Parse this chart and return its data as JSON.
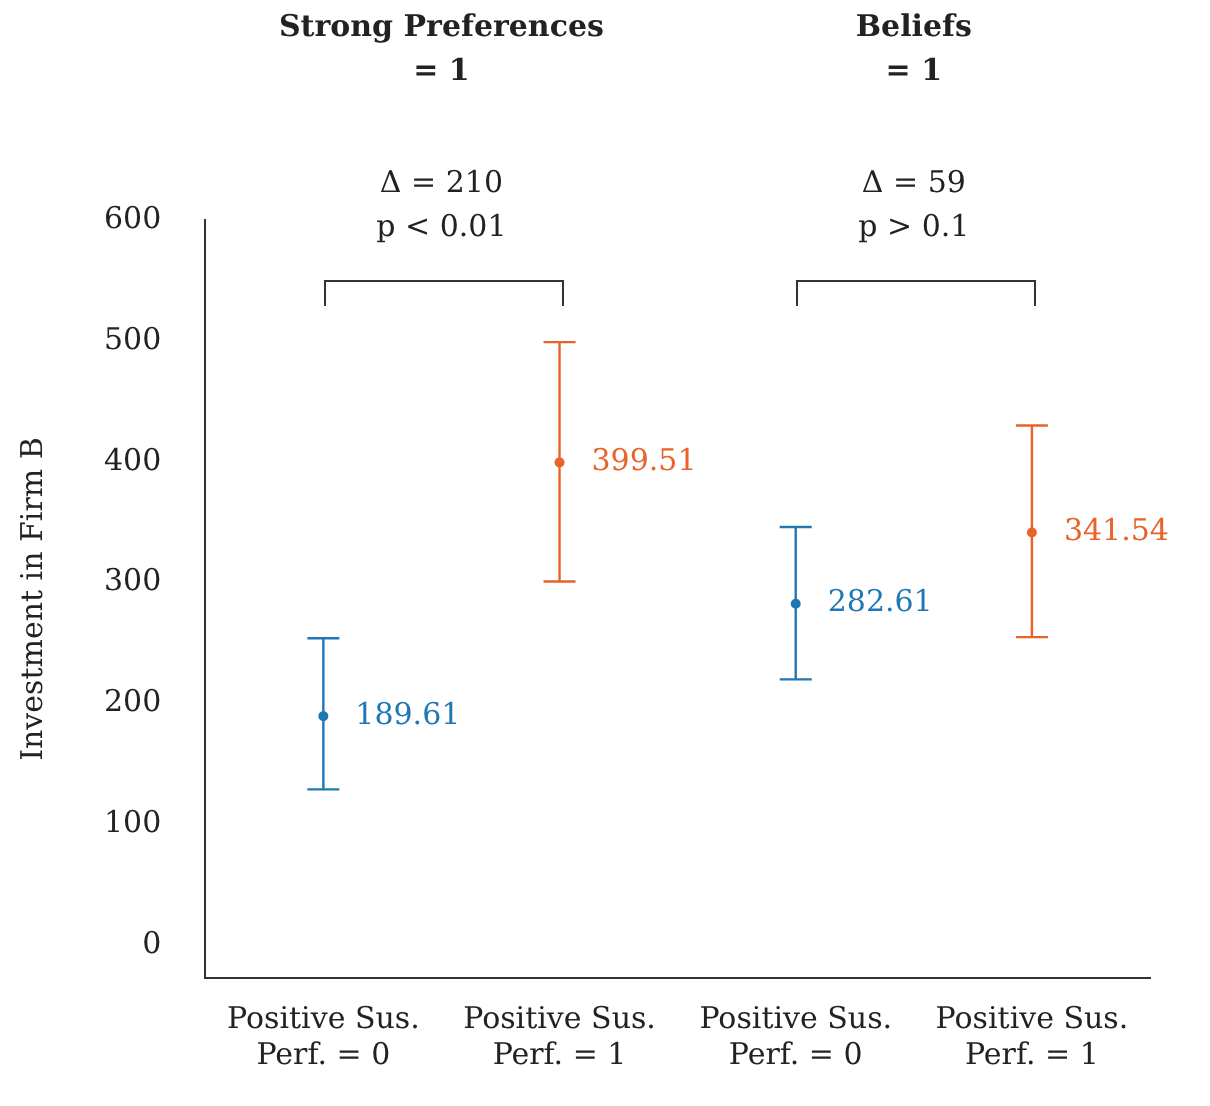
{
  "chart_data": {
    "type": "scatter",
    "ylabel": "Investment in Firm B",
    "categories": [
      "Positive Sus.\nPerf. = 0",
      "Positive Sus.\nPerf. = 1",
      "Positive Sus.\nPerf. = 0",
      "Positive Sus.\nPerf. = 1"
    ],
    "series": [
      {
        "color": "#1f77b4",
        "values": [
          189.61,
          null,
          282.61,
          null
        ],
        "errors": [
          [
            129,
            254
          ],
          null,
          [
            220,
            346
          ],
          null
        ]
      },
      {
        "color": "#e8632a",
        "values": [
          null,
          399.51,
          null,
          341.54
        ],
        "errors": [
          null,
          [
            301,
            499
          ],
          null,
          [
            255,
            430
          ]
        ]
      }
    ],
    "data_labels": true,
    "marker": "circle",
    "grid": false,
    "legend": false,
    "ylim": [
      -27,
      600
    ],
    "yticks": [
      0,
      100,
      200,
      300,
      400,
      500,
      600
    ],
    "annotations": [
      "Strong Preferences\n= 1",
      "Beliefs\n= 1",
      "Δ = 210\np < 0.01",
      "Δ = 59\np > 0.1"
    ]
  }
}
